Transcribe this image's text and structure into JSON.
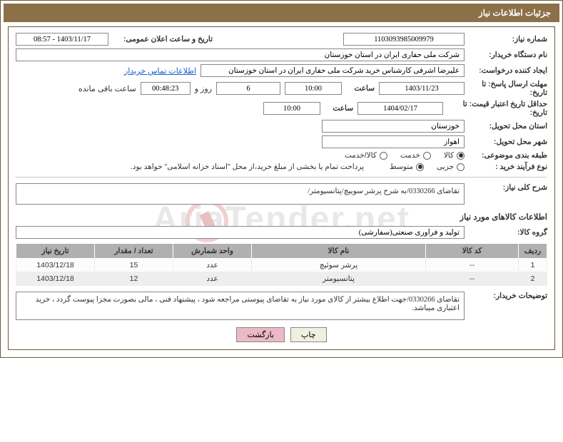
{
  "header": {
    "title": "جزئیات اطلاعات نیاز"
  },
  "watermark": "AriaTender.net",
  "fields": {
    "need_number_label": "شماره نیاز:",
    "need_number": "1103093985009979",
    "announce_label": "تاریخ و ساعت اعلان عمومی:",
    "announce_value": "1403/11/17 - 08:57",
    "buyer_org_label": "نام دستگاه خریدار:",
    "buyer_org": "شرکت ملی حفاری ایران در استان خوزستان",
    "requester_label": "ایجاد کننده درخواست:",
    "requester": "علیرضا اشرفی کارشناس خرید شرکت ملی حفاری ایران در استان خوزستان",
    "contact_link": "اطلاعات تماس خریدار",
    "deadline_label": "مهلت ارسال پاسخ: تا تاریخ:",
    "deadline_date": "1403/11/23",
    "time_label": "ساعت",
    "deadline_time": "10:00",
    "days": "6",
    "days_suffix": "روز و",
    "countdown": "00:48:23",
    "remaining_suffix": "ساعت باقی مانده",
    "validity_label": "حداقل تاریخ اعتبار قیمت: تا تاریخ:",
    "validity_date": "1404/02/17",
    "validity_time": "10:00",
    "province_label": "استان محل تحویل:",
    "province": "خوزستان",
    "city_label": "شهر محل تحویل:",
    "city": "اهواز",
    "category_label": "طبقه بندی موضوعی:",
    "process_label": "نوع فرآیند خرید :",
    "payment_note": "پرداخت تمام یا بخشی از مبلغ خرید،از محل \"اسناد خزانه اسلامی\" خواهد بود.",
    "desc_label": "شرح کلی نیاز:",
    "desc": "تقاضای 0330266/به شرح پرشر سوییچ/پتانسیومتر/",
    "goods_info_title": "اطلاعات کالاهای مورد نیاز",
    "group_label": "گروه کالا:",
    "group": "تولید و فرآوری صنعتی(سفارشی)",
    "notes_label": "توضیحات خریدار:",
    "notes": "تقاضای 0330266/جهت اطلاع بیشتر از کالای مورد نیاز به تقاضای پیوستی مراجعه شود ، پیشنهاد فنی ، مالی بصورت مجزا پیوست گردد ، خرید اعتباری میباشد."
  },
  "radios": {
    "category": [
      {
        "label": "کالا",
        "checked": true
      },
      {
        "label": "خدمت",
        "checked": false
      },
      {
        "label": "کالا/خدمت",
        "checked": false
      }
    ],
    "process": [
      {
        "label": "جزیی",
        "checked": false
      },
      {
        "label": "متوسط",
        "checked": true
      }
    ]
  },
  "table": {
    "columns": [
      "ردیف",
      "کد کالا",
      "نام کالا",
      "واحد شمارش",
      "تعداد / مقدار",
      "تاریخ نیاز"
    ],
    "col_widths": [
      "40px",
      "130px",
      "auto",
      "110px",
      "110px",
      "110px"
    ],
    "rows": [
      [
        "1",
        "--",
        "پرشر سوئیچ",
        "عدد",
        "15",
        "1403/12/18"
      ],
      [
        "2",
        "--",
        "پتانسیومتر",
        "عدد",
        "12",
        "1403/12/18"
      ]
    ]
  },
  "buttons": {
    "print": "چاپ",
    "back": "بازگشت"
  },
  "colors": {
    "header_bg": "#8b7048",
    "border": "#6b5a3a",
    "th_bg": "#b0b0b0",
    "btn_back": "#ecb9c7"
  }
}
